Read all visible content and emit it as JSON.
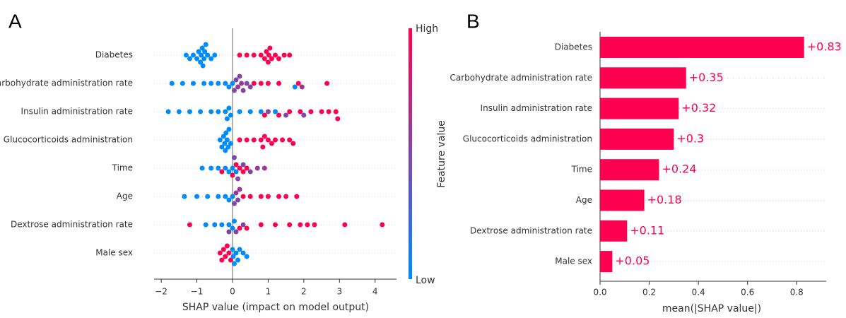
{
  "chart_data": [
    {
      "type": "beeswarm",
      "panel_label": "A",
      "xlabel": "SHAP value (impact on model output)",
      "xlim": [
        -2.2,
        4.6
      ],
      "xticks": [
        {
          "value": -2,
          "label": "−2"
        },
        {
          "value": -1,
          "label": "−1"
        },
        0,
        1,
        2,
        3,
        4
      ],
      "colorbar": {
        "label": "Feature value",
        "high": "High",
        "low": "Low",
        "low_color": "#008bfb",
        "high_color": "#ff0051"
      },
      "series": [
        {
          "name": "Diabetes",
          "values": [
            -1.3,
            -1.2,
            -1.1,
            -1.0,
            -0.95,
            -0.9,
            -0.88,
            -0.85,
            -0.83,
            -0.8,
            -0.78,
            -0.75,
            -0.7,
            -0.6,
            -0.5,
            0.2,
            0.4,
            0.6,
            0.8,
            0.9,
            0.95,
            1.0,
            1.02,
            1.05,
            1.1,
            1.2,
            1.3,
            1.45,
            1.6
          ],
          "feature_values": [
            0,
            0,
            0,
            0,
            0,
            0,
            0,
            0,
            0,
            0,
            0,
            0,
            0,
            0,
            0,
            1,
            1,
            1,
            1,
            1,
            1,
            1,
            1,
            1,
            1,
            1,
            1,
            1,
            1
          ]
        },
        {
          "name": "Carbohydrate administration rate",
          "values": [
            -1.7,
            -1.4,
            -1.1,
            -0.8,
            -0.6,
            -0.4,
            -0.2,
            -0.1,
            0,
            0.05,
            0.1,
            0.15,
            0.2,
            0.25,
            0.3,
            0.4,
            0.5,
            0.6,
            0.8,
            1.0,
            1.3,
            1.85,
            2.65,
            1.95,
            1.75
          ],
          "feature_values": [
            0,
            0,
            0,
            0,
            0,
            0,
            0,
            0,
            0,
            0.5,
            0.5,
            0.6,
            0.5,
            0.6,
            0.5,
            0.5,
            0.5,
            1,
            1,
            1,
            1,
            1,
            1,
            0.6,
            0
          ]
        },
        {
          "name": "Insulin administration rate",
          "values": [
            -1.8,
            -1.5,
            -1.2,
            -0.9,
            -0.6,
            -0.4,
            -0.2,
            -0.15,
            -0.1,
            -0.05,
            0.2,
            0.5,
            0.8,
            1.2,
            0.9,
            1.3,
            1.6,
            1.9,
            2.2,
            2.5,
            2.7,
            2.9,
            2.95,
            1.0,
            1.5,
            2.0
          ],
          "feature_values": [
            0,
            0,
            0,
            0,
            0,
            0,
            0,
            0,
            0,
            0,
            0,
            0,
            0,
            0,
            1,
            1,
            1,
            1,
            1,
            1,
            1,
            1,
            1,
            0.5,
            0.5,
            0.5
          ]
        },
        {
          "name": "Glucocorticoids administration",
          "values": [
            -0.35,
            -0.3,
            -0.25,
            -0.22,
            -0.2,
            -0.18,
            -0.15,
            -0.12,
            -0.1,
            -0.05,
            0.2,
            0.4,
            0.6,
            0.8,
            0.85,
            0.9,
            1.0,
            1.1,
            1.2,
            1.4,
            1.6,
            1.7
          ],
          "feature_values": [
            0,
            0,
            0,
            0,
            0,
            0,
            0,
            0,
            0,
            0,
            1,
            1,
            1,
            1,
            1,
            1,
            1,
            1,
            1,
            1,
            1,
            1
          ]
        },
        {
          "name": "Time",
          "values": [
            -0.85,
            -0.6,
            -0.4,
            -0.2,
            -0.1,
            0,
            0.1,
            -0.3,
            0,
            0.1,
            0.2,
            0.3,
            0.4,
            0.05,
            0.15,
            0.3,
            0.5,
            0.7,
            0.9
          ],
          "feature_values": [
            0,
            0,
            0,
            0,
            0,
            0,
            0,
            1,
            1,
            1,
            1,
            1,
            1,
            0.5,
            0.5,
            0.5,
            0.5,
            0.6,
            0.6
          ]
        },
        {
          "name": "Age",
          "values": [
            -1.35,
            -1.0,
            -0.7,
            -0.4,
            -0.2,
            -0.1,
            0,
            0.05,
            0.1,
            0.15,
            0.2,
            0.3,
            0.5,
            0.8,
            1.0,
            1.3,
            1.5,
            1.8
          ],
          "feature_values": [
            0,
            0,
            0,
            0,
            0,
            0,
            0,
            0.5,
            0.6,
            0.5,
            0.6,
            1,
            1,
            1,
            1,
            1,
            1,
            1
          ]
        },
        {
          "name": "Dextrose administration rate",
          "values": [
            -1.2,
            -0.75,
            -0.5,
            -0.3,
            -0.1,
            0,
            0.05,
            -0.1,
            0.1,
            0.3,
            0.2,
            0.4,
            0.8,
            1.2,
            1.6,
            1.9,
            2.1,
            2.3,
            3.15,
            4.2
          ],
          "feature_values": [
            1,
            0,
            0,
            0,
            0,
            0,
            0,
            0.5,
            0.5,
            0.5,
            1,
            1,
            1,
            1,
            1,
            1,
            1,
            1,
            1,
            1
          ]
        },
        {
          "name": "Male sex",
          "values": [
            -0.35,
            -0.3,
            -0.25,
            -0.2,
            -0.15,
            -0.1,
            -0.05,
            0,
            0.02,
            0.05,
            0.1,
            0.15,
            0.2,
            0.3,
            0.4
          ],
          "feature_values": [
            1,
            1,
            1,
            1,
            1,
            1,
            1,
            0,
            0,
            0,
            0,
            0,
            0,
            0,
            0
          ]
        }
      ]
    },
    {
      "type": "bar",
      "panel_label": "B",
      "xlabel": "mean(|SHAP value|)",
      "color": "#ff0051",
      "categories": [
        "Diabetes",
        "Carbohydrate administration rate",
        "Insulin administration rate",
        "Glucocorticoids administration",
        "Time",
        "Age",
        "Dextrose administration rate",
        "Male sex"
      ],
      "values": [
        0.83,
        0.35,
        0.32,
        0.3,
        0.24,
        0.18,
        0.11,
        0.05
      ],
      "value_labels": [
        "+0.83",
        "+0.35",
        "+0.32",
        "+0.3",
        "+0.24",
        "+0.18",
        "+0.11",
        "+0.05"
      ],
      "xlim": [
        0,
        0.92
      ],
      "xticks": [
        {
          "value": 0,
          "label": "0.0"
        },
        0.2,
        0.4,
        0.6,
        0.8
      ]
    }
  ]
}
